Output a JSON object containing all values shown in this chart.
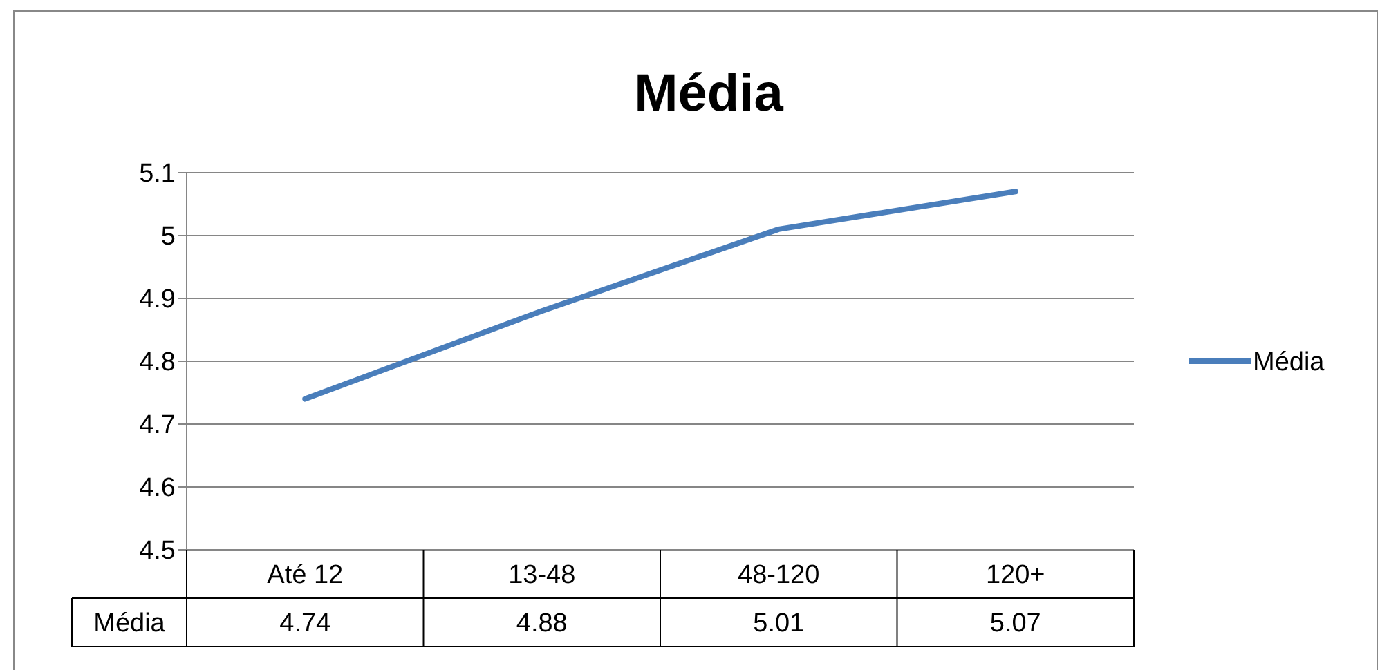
{
  "chart_data": {
    "type": "line",
    "title": "Média",
    "categories": [
      "Até 12",
      "13-48",
      "48-120",
      "120+"
    ],
    "series": [
      {
        "name": "Média",
        "color": "#4a7ebb",
        "values": [
          4.74,
          4.88,
          5.01,
          5.07
        ]
      }
    ],
    "ylim": [
      4.5,
      5.1
    ],
    "yticks": [
      4.5,
      4.6,
      4.7,
      4.8,
      4.9,
      5,
      5.1
    ],
    "grid": "y",
    "legend": "right",
    "data_labels": true
  }
}
